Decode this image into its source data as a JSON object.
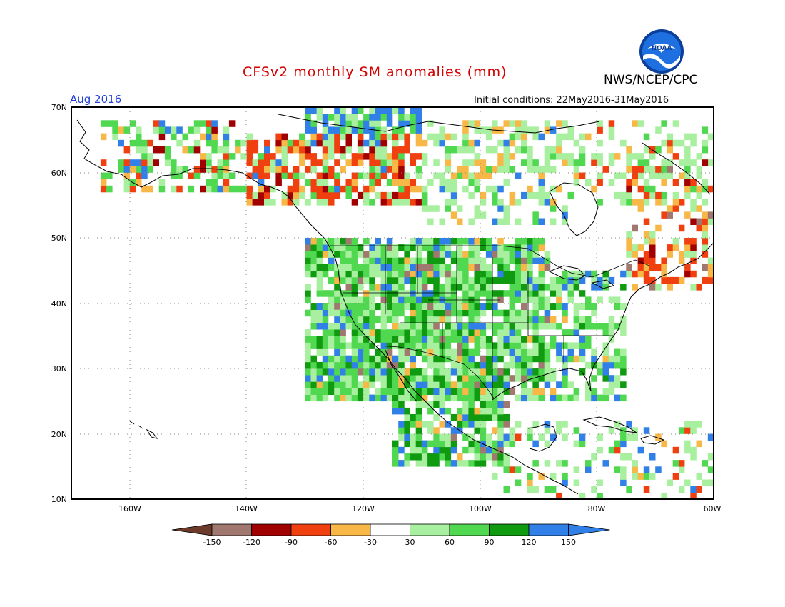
{
  "header": {
    "title": "CFSv2 monthly SM anomalies (mm)",
    "agency": "NWS/NCEP/CPC",
    "month": "Aug 2016",
    "initial_conditions": "Initial conditions: 22May2016-31May2016",
    "logo_text": "NOAA"
  },
  "axes": {
    "lat_labels": [
      "70N",
      "60N",
      "50N",
      "40N",
      "30N",
      "20N",
      "10N"
    ],
    "lon_labels": [
      "160W",
      "140W",
      "120W",
      "100W",
      "80W",
      "60W"
    ]
  },
  "legend": {
    "tick_labels": [
      "-150",
      "-120",
      "-90",
      "-60",
      "-30",
      "30",
      "60",
      "90",
      "120",
      "150"
    ],
    "colors": [
      "#6b3a2a",
      "#a07870",
      "#a00000",
      "#f04010",
      "#f8b848",
      "#ffffff",
      "#a8f0a0",
      "#50d850",
      "#109a10",
      "#3080e8",
      "#3080e8"
    ]
  },
  "palette": {
    "dark_brown": "#6b3a2a",
    "brown": "#a07870",
    "dark_red": "#a00000",
    "red": "#f04010",
    "orange": "#f8b848",
    "light_green": "#a8f0a0",
    "green": "#50d850",
    "dark_green": "#109a10",
    "blue": "#3080e8",
    "title_red": "#d40000",
    "month_blue": "#1f3dd6"
  }
}
